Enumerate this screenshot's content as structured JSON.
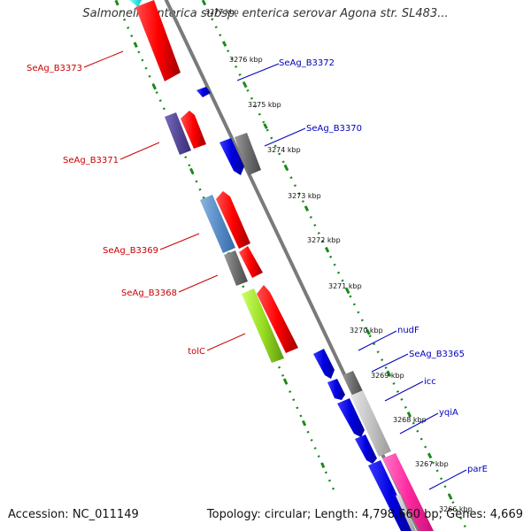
{
  "title": "Salmonella enterica subsp. enterica serovar Agona str. SL483...",
  "accession": "Accession: NC_011149",
  "topology": "Topology: circular; Length: 4,798,660 bp; Genes: 4,669",
  "colors": {
    "forward_gene": "#0000dd",
    "reverse_gene": "#ff0000",
    "backbone": "#7a7a7a",
    "tick": "#1a8a1a",
    "forward_label": "#0000bb",
    "reverse_label": "#cc0000"
  },
  "scale_labels": [
    {
      "text": "3277 kbp",
      "pos": 3277
    },
    {
      "text": "3276 kbp",
      "pos": 3276
    },
    {
      "text": "3275 kbp",
      "pos": 3275
    },
    {
      "text": "3274 kbp",
      "pos": 3274
    },
    {
      "text": "3273 kbp",
      "pos": 3273
    },
    {
      "text": "3272 kbp",
      "pos": 3272
    },
    {
      "text": "3271 kbp",
      "pos": 3271
    },
    {
      "text": "3270 kbp",
      "pos": 3270
    },
    {
      "text": "3269 kbp",
      "pos": 3269
    },
    {
      "text": "3268 kbp",
      "pos": 3268
    },
    {
      "text": "3267 kbp",
      "pos": 3267
    },
    {
      "text": "3266 kbp",
      "pos": 3266
    }
  ],
  "forward_labels": [
    "SeAg_B3372",
    "SeAg_B3370",
    "nudF",
    "SeAg_B3365",
    "icc",
    "yqiA",
    "parE"
  ],
  "reverse_labels": [
    "SeAg_B3373",
    "SeAg_B3371",
    "SeAg_B3369",
    "SeAg_B3368",
    "tolC"
  ]
}
